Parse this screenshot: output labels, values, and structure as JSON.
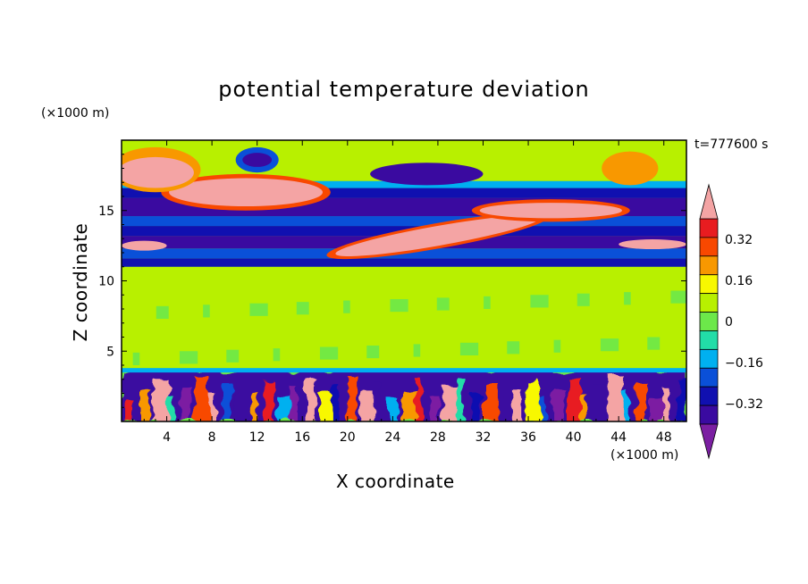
{
  "chart_data": {
    "type": "heatmap",
    "title": "potential temperature deviation",
    "xlabel": "X coordinate",
    "ylabel": "Z coordinate",
    "x_unit": "(×1000 m)",
    "y_unit": "(×1000 m)",
    "annotation": "t=777600 s",
    "xlim": [
      0,
      50
    ],
    "ylim": [
      0,
      20
    ],
    "x_ticks": [
      4,
      8,
      12,
      16,
      20,
      24,
      28,
      32,
      36,
      40,
      44,
      48
    ],
    "y_ticks": [
      5,
      10,
      15
    ],
    "colorbar": {
      "levels": [
        -0.48,
        -0.4,
        -0.32,
        -0.24,
        -0.16,
        -0.08,
        0,
        0.08,
        0.16,
        0.24,
        0.32,
        0.4,
        0.48
      ],
      "labeled_levels": [
        0.32,
        0.16,
        0,
        -0.16,
        -0.32
      ],
      "labels": [
        "0.32",
        "0.16",
        "0",
        "−0.16",
        "−0.32"
      ],
      "colors": [
        "#7b1fa2",
        "#3a0aa0",
        "#1010b0",
        "#0a50d8",
        "#00b0f0",
        "#22dda8",
        "#6ce84a",
        "#b8f000",
        "#f8f800",
        "#f89800",
        "#f84800",
        "#e81c20",
        "#f4a4a4"
      ],
      "extend": "both"
    },
    "field_description": "layered field: convective mixed layer below z≈3.5 with alternating strong positive and negative plumes; near-neutral (0 to +0.08) layer z≈3.5–11; strong negative band z≈11–14 with positive pink layers near z≈12–15; negative band z≈15–17; positive layers above z≈17"
  }
}
